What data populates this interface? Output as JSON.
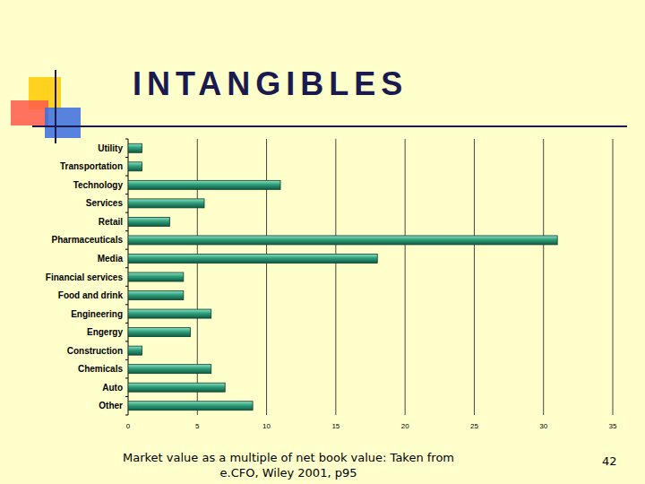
{
  "chart_data": {
    "type": "bar",
    "orientation": "horizontal",
    "title": "INTANGIBLES",
    "caption": "Market value as a multiple of net book value:  Taken from e.CFO, Wiley 2001, p95",
    "categories": [
      "Utility",
      "Transportation",
      "Technology",
      "Services",
      "Retail",
      "Pharmaceuticals",
      "Media",
      "Financial services",
      "Food and drink",
      "Engineering",
      "Engergy",
      "Construction",
      "Chemicals",
      "Auto",
      "Other"
    ],
    "values": [
      1,
      1,
      11,
      5.5,
      3,
      31,
      18,
      4,
      4,
      6,
      4.5,
      1,
      6,
      7,
      9
    ],
    "color": "#2f9f7b",
    "xlim": [
      0,
      35
    ],
    "xticks": [
      0,
      5,
      10,
      15,
      20,
      25,
      30,
      35
    ],
    "grid": true
  },
  "slide": {
    "page_number": "42"
  }
}
